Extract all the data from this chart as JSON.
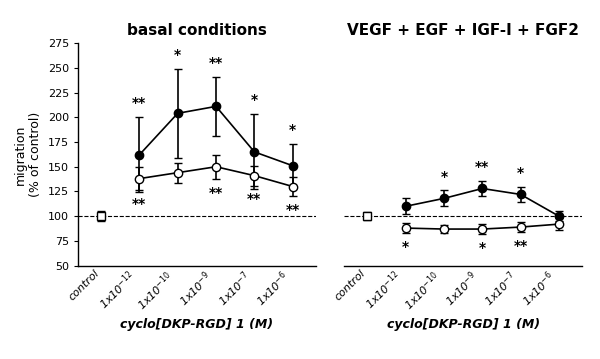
{
  "left_title": "basal conditions",
  "right_title": "VEGF + EGF + IGF-I + FGF2",
  "xlabel": "cyclo[DKP-RGD] 1 (M)",
  "ylabel": "migration\n(% of control)",
  "x_labels": [
    "control",
    "1x10$^{-12}$",
    "1x10$^{-10}$",
    "1x10$^{-9}$",
    "1x10$^{-7}$",
    "1x10$^{-6}$"
  ],
  "ylim": [
    50,
    275
  ],
  "yticks": [
    50,
    75,
    100,
    125,
    150,
    175,
    200,
    225,
    250,
    275
  ],
  "left_filled_y": [
    100,
    162,
    204,
    211,
    165,
    151
  ],
  "left_filled_yerr": [
    5,
    38,
    45,
    30,
    38,
    22
  ],
  "left_open_y": [
    100,
    138,
    144,
    150,
    141,
    130
  ],
  "left_open_yerr": [
    5,
    12,
    10,
    12,
    10,
    10
  ],
  "right_filled_y": [
    100,
    110,
    118,
    128,
    122,
    100
  ],
  "right_filled_yerr": [
    4,
    8,
    8,
    8,
    8,
    5
  ],
  "right_open_y": [
    100,
    88,
    87,
    87,
    89,
    92
  ],
  "right_open_yerr": [
    4,
    5,
    4,
    5,
    5,
    6
  ],
  "left_filled_sig": [
    "",
    "**",
    "*",
    "**",
    "*",
    "*"
  ],
  "left_open_sig": [
    "",
    "**",
    "",
    "**",
    "**",
    "**"
  ],
  "right_filled_sig": [
    "",
    "",
    "*",
    "**",
    "*",
    ""
  ],
  "right_open_sig": [
    "",
    "*",
    "",
    "*",
    "**",
    ""
  ],
  "color_filled": "#000000",
  "color_open": "#000000",
  "background": "#ffffff",
  "dashed_line_y": 100,
  "title_fontsize": 11,
  "label_fontsize": 9,
  "tick_fontsize": 8,
  "annot_fontsize": 10
}
